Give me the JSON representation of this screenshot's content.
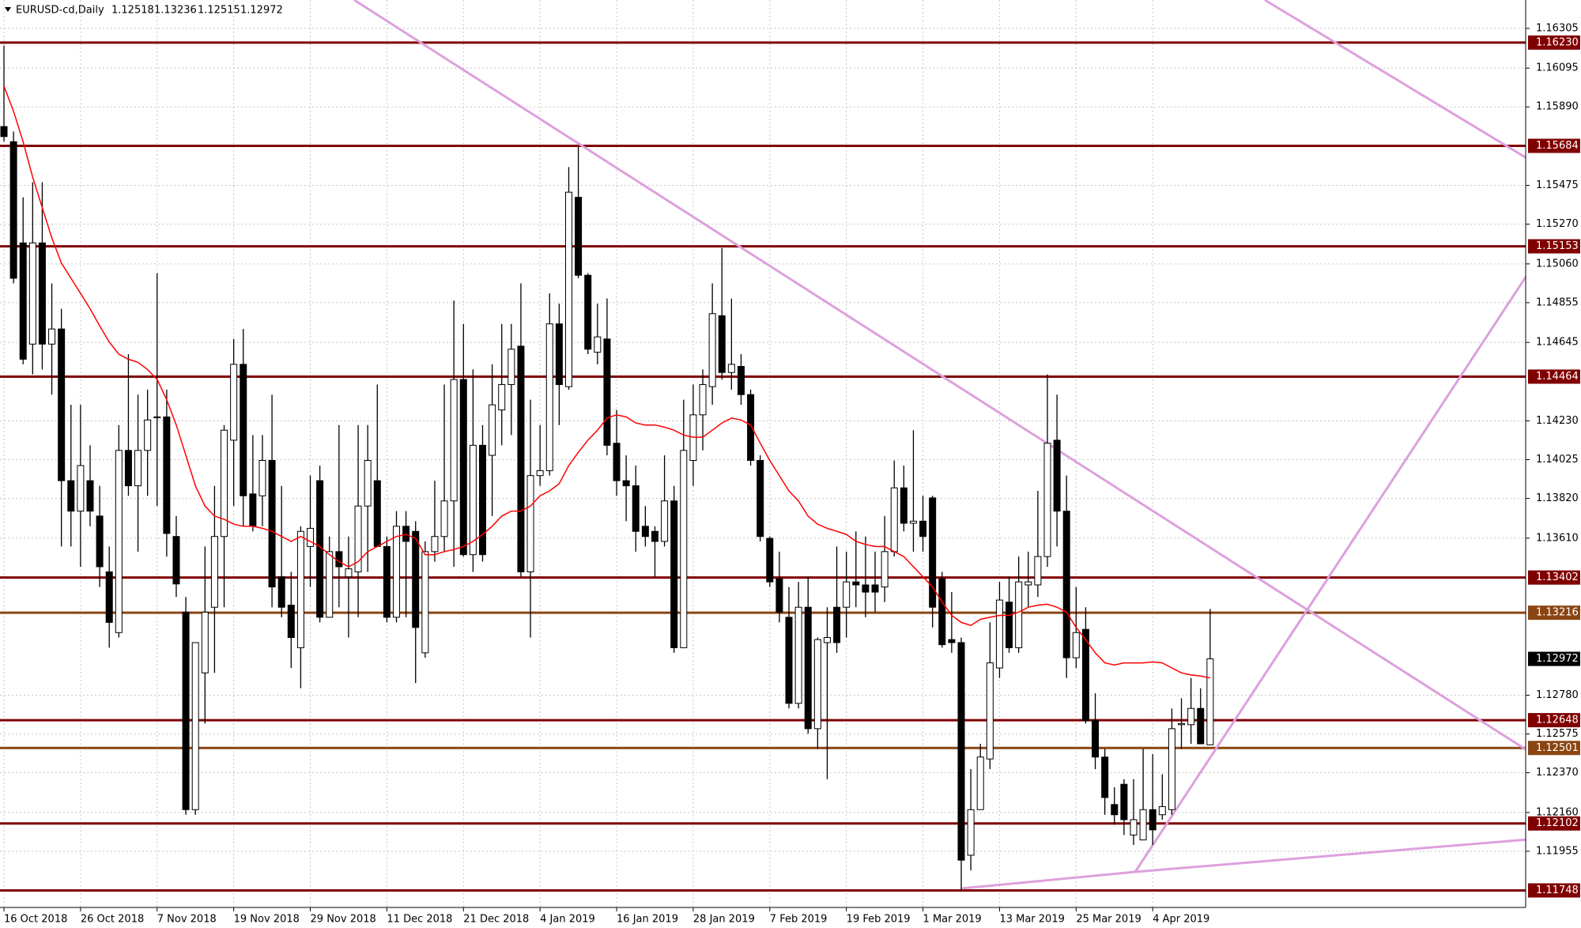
{
  "chart_data": {
    "type": "candlestick",
    "title": "EURUSD-cd,Daily",
    "categories": [
      "16 Oct 2018",
      null,
      null,
      null,
      null,
      null,
      null,
      null,
      "26 Oct 2018",
      null,
      null,
      null,
      null,
      null,
      null,
      null,
      "7 Nov 2018",
      null,
      null,
      null,
      null,
      null,
      null,
      null,
      "19 Nov 2018",
      null,
      null,
      null,
      null,
      null,
      null,
      null,
      "29 Nov 2018",
      null,
      null,
      null,
      null,
      null,
      null,
      null,
      "11 Dec 2018",
      null,
      null,
      null,
      null,
      null,
      null,
      null,
      "21 Dec 2018",
      null,
      null,
      null,
      null,
      null,
      null,
      null,
      "4 Jan 2019",
      null,
      null,
      null,
      null,
      null,
      null,
      null,
      "16 Jan 2019",
      null,
      null,
      null,
      null,
      null,
      null,
      null,
      "28 Jan 2019",
      null,
      null,
      null,
      null,
      null,
      null,
      null,
      "7 Feb 2019",
      null,
      null,
      null,
      null,
      null,
      null,
      null,
      "19 Feb 2019",
      null,
      null,
      null,
      null,
      null,
      null,
      null,
      "1 Mar 2019",
      null,
      null,
      null,
      null,
      null,
      null,
      null,
      "13 Mar 2019",
      null,
      null,
      null,
      null,
      null,
      null,
      null,
      "25 Mar 2019",
      null,
      null,
      null,
      null,
      null,
      null,
      null,
      "4 Apr 2019",
      null,
      null,
      null,
      null,
      null,
      null
    ],
    "open": [
      1.15786,
      1.15706,
      1.15171,
      1.14636,
      1.15171,
      1.14636,
      1.14716,
      1.13914,
      1.13753,
      1.13914,
      1.13727,
      1.13432,
      1.13111,
      1.14074,
      1.13887,
      1.14074,
      1.14251,
      1.14251,
      1.13619,
      1.13219,
      1.12175,
      1.12898,
      1.13245,
      1.13619,
      1.14128,
      1.14529,
      1.13844,
      1.13834,
      1.14021,
      1.13406,
      1.13256,
      1.13031,
      1.13566,
      1.13914,
      1.13192,
      1.13539,
      1.13406,
      1.13432,
      1.1378,
      1.13914,
      1.13566,
      1.13192,
      1.13673,
      1.13646,
      1.13004,
      1.13539,
      1.13619,
      1.13807,
      1.14449,
      1.13523,
      1.14101,
      1.14048,
      1.14288,
      1.14422,
      1.14625,
      1.13432,
      1.13941,
      1.13967,
      1.14743,
      1.14411,
      1.15412,
      1.15,
      1.14593,
      1.14663,
      1.14112,
      1.13914,
      1.13887,
      1.13673,
      1.13646,
      1.13593,
      1.13807,
      1.13031,
      1.14021,
      1.14262,
      1.14411,
      1.14786,
      1.14486,
      1.14518,
      1.14369,
      1.14021,
      1.13609,
      1.13395,
      1.13192,
      1.12737,
      1.13245,
      1.12603,
      1.13058,
      1.13245,
      1.13245,
      1.13379,
      1.13363,
      1.13363,
      1.13352,
      1.13539,
      1.13876,
      1.13689,
      1.137,
      1.13823,
      1.13395,
      1.13074,
      1.13058,
      1.11934,
      1.12175,
      1.12443,
      1.12924,
      1.13272,
      1.13031,
      1.13363,
      1.13363,
      1.13513,
      1.14128,
      1.13753,
      1.12978,
      1.13128,
      1.12646,
      1.12453,
      1.12202,
      1.12309,
      1.12041,
      1.12015,
      1.12175,
      1.12148,
      1.12175,
      1.12624,
      1.12624,
      1.1271,
      1.12518
    ],
    "high": [
      1.16214,
      1.1576,
      1.15412,
      1.15492,
      1.15492,
      1.14957,
      1.14823,
      1.14315,
      1.14315,
      1.14101,
      1.13887,
      1.13566,
      1.14208,
      1.14583,
      1.14369,
      1.14395,
      1.15011,
      1.14395,
      1.13727,
      1.13299,
      1.13058,
      1.13566,
      1.13887,
      1.14208,
      1.14663,
      1.14716,
      1.14155,
      1.14155,
      1.14369,
      1.13887,
      1.13432,
      1.13673,
      1.13941,
      1.13994,
      1.13619,
      1.14208,
      1.13619,
      1.14208,
      1.14208,
      1.14422,
      1.13619,
      1.13753,
      1.13753,
      1.137,
      1.13593,
      1.13914,
      1.14422,
      1.14866,
      1.14743,
      1.14502,
      1.14208,
      1.14529,
      1.14743,
      1.14743,
      1.14957,
      1.14342,
      1.14208,
      1.14904,
      1.1485,
      1.15572,
      1.15679,
      1.15011,
      1.1485,
      1.14877,
      1.14288,
      1.14048,
      1.13994,
      1.1378,
      1.13673,
      1.14048,
      1.13887,
      1.14342,
      1.14422,
      1.14502,
      1.14957,
      1.15144,
      1.14877,
      1.14583,
      1.14395,
      1.14048,
      1.13619,
      1.13539,
      1.13352,
      1.13379,
      1.13406,
      1.13085,
      1.13245,
      1.13566,
      1.13539,
      1.13646,
      1.13619,
      1.13539,
      1.13727,
      1.14021,
      1.13994,
      1.14181,
      1.13834,
      1.13834,
      1.13432,
      1.13325,
      1.13085,
      1.12389,
      1.12523,
      1.13165,
      1.13379,
      1.13406,
      1.13513,
      1.13539,
      1.1386,
      1.14476,
      1.14369,
      1.13941,
      1.13352,
      1.13245,
      1.1279,
      1.12496,
      1.12293,
      1.12336,
      1.12336,
      1.12496,
      1.12469,
      1.12362,
      1.1271,
      1.12764,
      1.12871,
      1.12817,
      1.13236
    ],
    "low": [
      1.15706,
      1.14957,
      1.14529,
      1.14476,
      1.14502,
      1.14369,
      1.13566,
      1.13566,
      1.13459,
      1.13673,
      1.13352,
      1.13031,
      1.13085,
      1.13834,
      1.13539,
      1.13834,
      1.1378,
      1.13513,
      1.13299,
      1.12148,
      1.12148,
      1.1263,
      1.12898,
      1.13245,
      1.1378,
      1.13673,
      1.13646,
      1.13673,
      1.13245,
      1.13192,
      1.12924,
      1.12817,
      1.13352,
      1.13165,
      1.13192,
      1.13245,
      1.13085,
      1.13192,
      1.13432,
      1.13566,
      1.13165,
      1.13165,
      1.13192,
      1.12844,
      1.12978,
      1.13486,
      1.13539,
      1.13459,
      1.13513,
      1.13432,
      1.13486,
      1.13727,
      1.14101,
      1.14155,
      1.13406,
      1.13085,
      1.13887,
      1.13941,
      1.14208,
      1.14395,
      1.14984,
      1.14583,
      1.14529,
      1.14048,
      1.13834,
      1.137,
      1.13539,
      1.13566,
      1.13406,
      1.13566,
      1.13004,
      1.13031,
      1.13887,
      1.14074,
      1.14315,
      1.14449,
      1.14395,
      1.14315,
      1.13994,
      1.13593,
      1.13352,
      1.13165,
      1.1271,
      1.1271,
      1.12576,
      1.12496,
      1.12336,
      1.13004,
      1.13085,
      1.13245,
      1.13192,
      1.13219,
      1.13272,
      1.13513,
      1.13646,
      1.13539,
      1.13539,
      1.13138,
      1.13031,
      1.13004,
      1.11747,
      1.11854,
      1.12175,
      1.12389,
      1.12871,
      1.13004,
      1.13004,
      1.13245,
      1.13299,
      1.13459,
      1.13566,
      1.12871,
      1.12924,
      1.1263,
      1.12389,
      1.12148,
      1.12095,
      1.12041,
      1.11988,
      1.12015,
      1.11988,
      1.12122,
      1.12148,
      1.12496,
      1.12523,
      1.12523,
      1.12515
    ],
    "close": [
      1.15733,
      1.14984,
      1.14556,
      1.15171,
      1.14636,
      1.14716,
      1.13914,
      1.13753,
      1.13994,
      1.13753,
      1.13459,
      1.13165,
      1.14074,
      1.13887,
      1.14074,
      1.14235,
      1.14251,
      1.13635,
      1.13368,
      1.12175,
      1.13058,
      1.13219,
      1.13619,
      1.14181,
      1.14529,
      1.13834,
      1.13673,
      1.14021,
      1.13352,
      1.13245,
      1.13085,
      1.13646,
      1.13662,
      1.13192,
      1.13539,
      1.13459,
      1.13448,
      1.1378,
      1.14021,
      1.13566,
      1.13192,
      1.13673,
      1.13593,
      1.13138,
      1.13539,
      1.13619,
      1.13807,
      1.14449,
      1.13523,
      1.14101,
      1.13523,
      1.14315,
      1.14422,
      1.14609,
      1.13432,
      1.13941,
      1.13967,
      1.14743,
      1.14422,
      1.15439,
      1.15,
      1.14609,
      1.14674,
      1.14101,
      1.13914,
      1.13887,
      1.13646,
      1.13619,
      1.13593,
      1.13807,
      1.13031,
      1.14074,
      1.14262,
      1.14422,
      1.14797,
      1.14486,
      1.14529,
      1.14369,
      1.14021,
      1.13619,
      1.13379,
      1.13219,
      1.12737,
      1.13245,
      1.12603,
      1.13074,
      1.13085,
      1.13058,
      1.13379,
      1.13363,
      1.13325,
      1.13325,
      1.13539,
      1.13876,
      1.13689,
      1.137,
      1.13619,
      1.13245,
      1.13047,
      1.13058,
      1.11908,
      1.12175,
      1.12453,
      1.12951,
      1.13283,
      1.13031,
      1.13379,
      1.13379,
      1.13513,
      1.14112,
      1.13753,
      1.12978,
      1.13111,
      1.12646,
      1.12453,
      1.12239,
      1.12148,
      1.12122,
      1.12122,
      1.12175,
      1.12068,
      1.12191,
      1.12603,
      1.1263,
      1.1271,
      1.12523,
      1.12972
    ],
    "bull_color": "#ffffff",
    "bear_color": "#000000",
    "moving_average": {
      "color": "#ff0000",
      "values": [
        1.16,
        1.15867,
        1.15706,
        1.15519,
        1.15358,
        1.15198,
        1.15064,
        1.14984,
        1.14904,
        1.14823,
        1.14732,
        1.14647,
        1.14583,
        1.14556,
        1.1454,
        1.14502,
        1.14449,
        1.14342,
        1.14208,
        1.14048,
        1.13887,
        1.1378,
        1.13727,
        1.1371,
        1.13684,
        1.13673,
        1.13673,
        1.13662,
        1.13646,
        1.13619,
        1.13593,
        1.13619,
        1.13593,
        1.13566,
        1.13523,
        1.13486,
        1.13459,
        1.13486,
        1.13539,
        1.13566,
        1.13593,
        1.13619,
        1.1363,
        1.13609,
        1.13523,
        1.13523,
        1.13539,
        1.1355,
        1.13566,
        1.13593,
        1.1363,
        1.13673,
        1.13727,
        1.13753,
        1.13753,
        1.1378,
        1.13834,
        1.1386,
        1.13898,
        1.13994,
        1.14064,
        1.14128,
        1.14181,
        1.14245,
        1.14262,
        1.14251,
        1.14219,
        1.14208,
        1.14208,
        1.14197,
        1.14181,
        1.14155,
        1.14144,
        1.14144,
        1.14181,
        1.14219,
        1.14245,
        1.14235,
        1.14208,
        1.14112,
        1.14021,
        1.13941,
        1.1386,
        1.13807,
        1.13727,
        1.13684,
        1.13662,
        1.13646,
        1.1363,
        1.13593,
        1.13577,
        1.13566,
        1.13566,
        1.13539,
        1.13513,
        1.13459,
        1.13406,
        1.13352,
        1.13272,
        1.13202,
        1.13165,
        1.13149,
        1.13181,
        1.13192,
        1.13202,
        1.13202,
        1.13219,
        1.13245,
        1.13256,
        1.13261,
        1.13245,
        1.13219,
        1.13138,
        1.13074,
        1.13004,
        1.12951,
        1.1294,
        1.12951,
        1.12951,
        1.12951,
        1.12956,
        1.12951,
        1.12924,
        1.12898,
        1.12887,
        1.12881,
        1.12871
      ]
    },
    "levels": [
      {
        "value": 1.1623,
        "label": "1.16230",
        "color": "#800000"
      },
      {
        "value": 1.15684,
        "color": "#800000"
      },
      {
        "value": 1.15153,
        "color": "#800000"
      },
      {
        "value": 1.14464,
        "color": "#800000"
      },
      {
        "value": 1.13402,
        "color": "#800000"
      },
      {
        "value": 1.13216,
        "color": "#8b4513"
      },
      {
        "value": 1.12648,
        "color": "#800000"
      },
      {
        "value": 1.12501,
        "color": "#8b4513"
      },
      {
        "value": 1.12102,
        "color": "#800000"
      },
      {
        "value": 1.11748,
        "color": "#800000"
      }
    ],
    "current_price": 1.12972,
    "ylim": [
      1.11658,
      1.16455
    ],
    "yticks": [
      1.16305,
      1.16095,
      {
        "value": 1.1589,
        "label": "1.15890"
      },
      1.15475,
      {
        "value": 1.1527,
        "label": "1.15270"
      },
      {
        "value": 1.1506,
        "label": "1.15060"
      },
      1.14855,
      1.14645,
      {
        "value": 1.1423,
        "label": "1.14230"
      },
      1.14025,
      {
        "value": 1.1382,
        "label": "1.13820"
      },
      {
        "value": 1.1361,
        "label": "1.13610"
      },
      {
        "value": 1.1278,
        "label": "1.12780"
      },
      1.12575,
      {
        "value": 1.1237,
        "label": "1.12370"
      },
      {
        "value": 1.1216,
        "label": "1.12160"
      },
      1.11955
    ],
    "grid": true
  }
}
